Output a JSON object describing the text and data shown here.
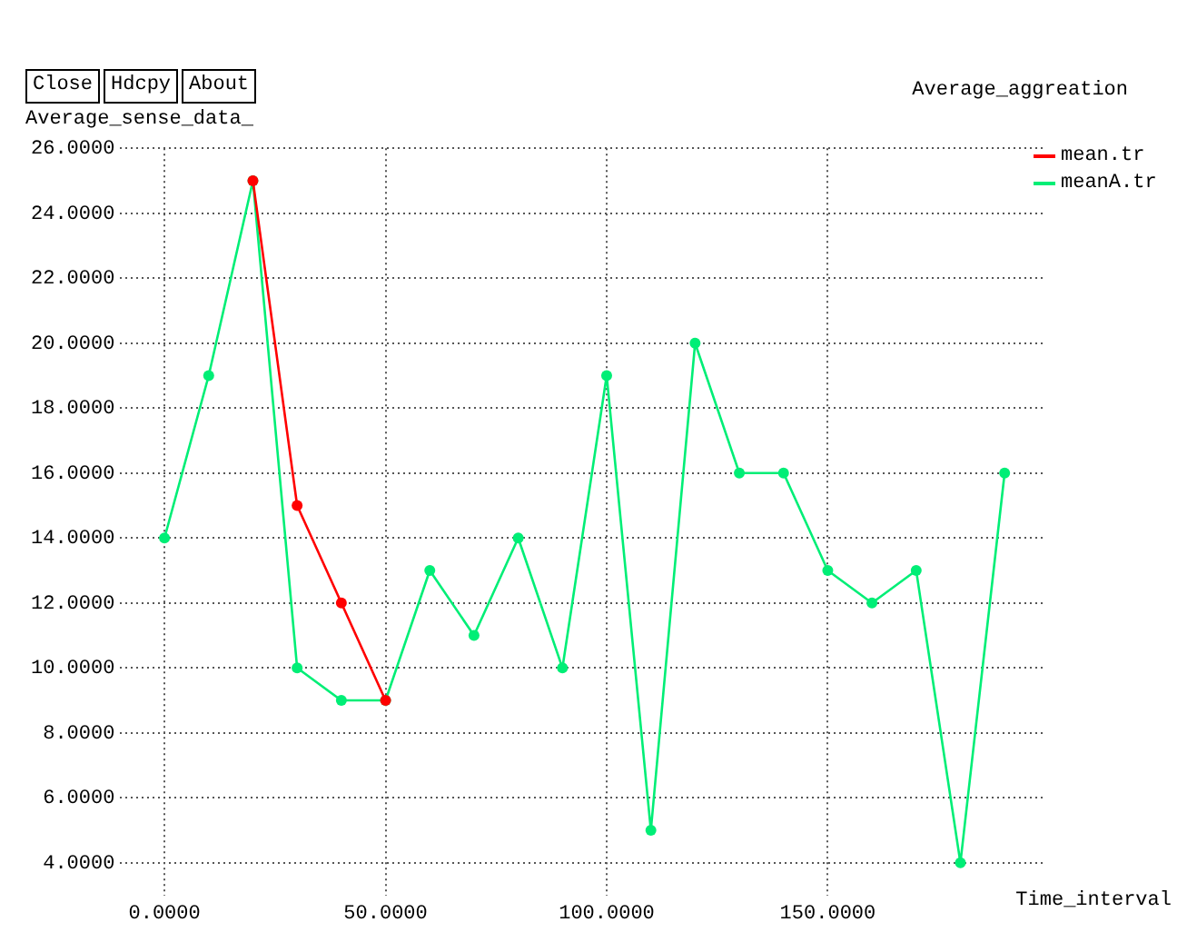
{
  "chart_data": {
    "type": "line",
    "title": "Average_aggreation",
    "ylabel": "Average_sense_data_",
    "xlabel": "Time_interval",
    "annotations": [
      "Close",
      "Hdcpy",
      "About"
    ],
    "xlim": [
      -10,
      199
    ],
    "ylim": [
      3,
      26
    ],
    "xticks": [
      {
        "value": 0,
        "label": "0.0000"
      },
      {
        "value": 50,
        "label": "50.0000"
      },
      {
        "value": 100,
        "label": "100.0000"
      },
      {
        "value": 150,
        "label": "150.0000"
      }
    ],
    "yticks": [
      {
        "value": 4,
        "label": "4.0000"
      },
      {
        "value": 6,
        "label": "6.0000"
      },
      {
        "value": 8,
        "label": "8.0000"
      },
      {
        "value": 10,
        "label": "10.0000"
      },
      {
        "value": 12,
        "label": "12.0000"
      },
      {
        "value": 14,
        "label": "14.0000"
      },
      {
        "value": 16,
        "label": "16.0000"
      },
      {
        "value": 18,
        "label": "18.0000"
      },
      {
        "value": 20,
        "label": "20.0000"
      },
      {
        "value": 22,
        "label": "22.0000"
      },
      {
        "value": 24,
        "label": "24.0000"
      },
      {
        "value": 26,
        "label": "26.0000"
      }
    ],
    "grid": true,
    "legend": "top right",
    "marker": "circle",
    "line_style": "solid",
    "series": [
      {
        "name": "mean.tr",
        "color": "#ff0000",
        "x": [
          20,
          30,
          40,
          50
        ],
        "values": [
          25,
          15,
          12,
          9
        ]
      },
      {
        "name": "meanA.tr",
        "color": "#00ee76",
        "x": [
          0,
          10,
          20,
          30,
          40,
          50,
          60,
          70,
          80,
          90,
          100,
          110,
          120,
          130,
          140,
          150,
          160,
          170,
          180,
          190
        ],
        "values": [
          14,
          19,
          25,
          10,
          9,
          9,
          13,
          11,
          14,
          10,
          19,
          5,
          20,
          16,
          16,
          13,
          12,
          13,
          4,
          16
        ]
      }
    ]
  }
}
